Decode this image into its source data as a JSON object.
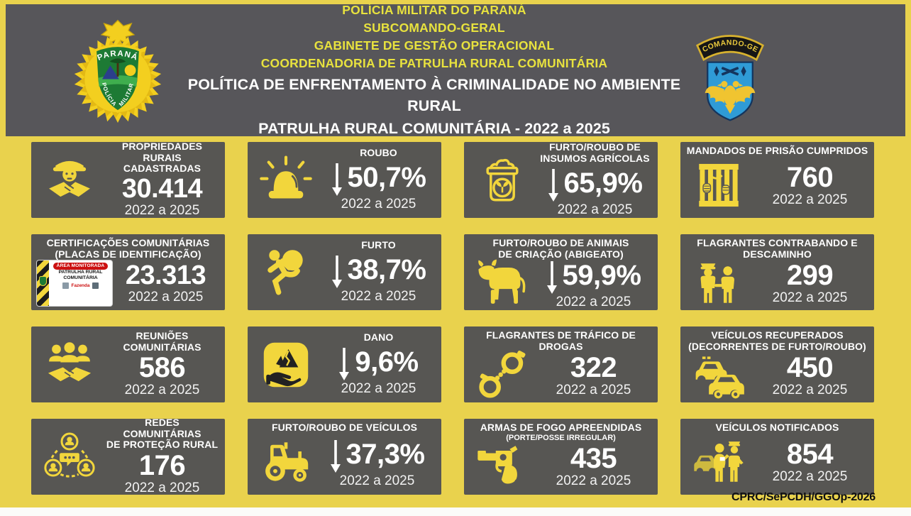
{
  "colors": {
    "background_yellow": "#e9d24d",
    "panel_gray": "#57565a",
    "card_gray": "#575653",
    "icon_yellow": "#f2d63c",
    "header_text_yellow": "#e8e23e",
    "white": "#ffffff"
  },
  "header": {
    "org_lines": [
      "POLÍCIA MILITAR DO PARANÁ",
      "SUBCOMANDO-GERAL",
      "GABINETE DE GESTÃO OPERACIONAL",
      "COORDENADORIA DE PATRULHA RURAL COMUNITÁRIA"
    ],
    "title_lines": [
      "POLÍTICA DE ENFRENTAMENTO À CRIMINALIDADE NO AMBIENTE RURAL",
      "PATRULHA RURAL COMUNITÁRIA - 2022 a 2025"
    ],
    "badge": {
      "top_label": "PARANÁ",
      "left_label": "POLÍCIA",
      "right_label": "MILITAR"
    },
    "patch": {
      "banner": "SUBCOMANDO-GERAL"
    }
  },
  "sign_plate": {
    "banner": "ÁREA MONITORADA",
    "line1": "PATRULHA RURAL",
    "line2": "COMUNITÁRIA",
    "farm": "Fazenda"
  },
  "cards": [
    {
      "id": "propriedades",
      "icon": "farmer-handshake-icon",
      "layout": "icon-left",
      "title": "PROPRIEDADES RURAIS\nCADASTRADAS",
      "value": "30.414",
      "trend": null,
      "period": "2022 a 2025"
    },
    {
      "id": "roubo",
      "icon": "siren-icon",
      "layout": "icon-left",
      "title": "ROUBO",
      "value": "50,7%",
      "trend": "down",
      "period": "2022 a 2025"
    },
    {
      "id": "insumos",
      "icon": "seed-bag-icon",
      "layout": "icon-left",
      "title": "FURTO/ROUBO DE\nINSUMOS AGRÍCOLAS",
      "value": "65,9%",
      "trend": "down",
      "period": "2022 a 2025"
    },
    {
      "id": "mandados",
      "icon": "prison-bars-icon",
      "layout": "title-top",
      "title": "MANDADOS DE PRISÃO CUMPRIDOS",
      "value": "760",
      "trend": null,
      "period": "2022 a 2025"
    },
    {
      "id": "certificacoes",
      "icon": "sign-plate-image",
      "layout": "title-top",
      "title": "CERTIFICAÇÕES COMUNITÁRIAS\n(PLACAS DE IDENTIFICAÇÃO)",
      "value": "23.313",
      "trend": null,
      "period": "2022 a 2025"
    },
    {
      "id": "furto",
      "icon": "running-thief-icon",
      "layout": "icon-left",
      "title": "FURTO",
      "value": "38,7%",
      "trend": "down",
      "period": "2022 a 2025"
    },
    {
      "id": "abigeato",
      "icon": "cattle-icon",
      "layout": "title-top",
      "title": "FURTO/ROUBO DE ANIMAIS\nDE CRIAÇÃO (ABIGEATO)",
      "value": "59,9%",
      "trend": "down",
      "period": "2022 a 2025"
    },
    {
      "id": "contrabando",
      "icon": "police-escort-icon",
      "layout": "title-top",
      "title": "FLAGRANTES CONTRABANDO E\nDESCAMINHO",
      "value": "299",
      "trend": null,
      "period": "2022 a 2025"
    },
    {
      "id": "reunioes",
      "icon": "community-handshake-icon",
      "layout": "icon-left",
      "title": "REUNIÕES COMUNITÁRIAS",
      "value": "586",
      "trend": null,
      "period": "2022 a 2025"
    },
    {
      "id": "dano",
      "icon": "damage-hand-icon",
      "layout": "icon-left",
      "title": "DANO",
      "value": "9,6%",
      "trend": "down",
      "period": "2022 a 2025"
    },
    {
      "id": "drogas",
      "icon": "handcuffs-icon",
      "layout": "title-top",
      "title": "FLAGRANTES DE TRÁFICO DE\nDROGAS",
      "value": "322",
      "trend": null,
      "period": "2022 a 2025"
    },
    {
      "id": "recuperados",
      "icon": "recovered-cars-icon",
      "layout": "title-top",
      "title": "VEÍCULOS RECUPERADOS\n(DECORRENTES DE FURTO/ROUBO)",
      "value": "450",
      "trend": null,
      "period": "2022 a 2025"
    },
    {
      "id": "redes",
      "icon": "community-network-icon",
      "layout": "icon-left",
      "title": "REDES COMUNITÁRIAS\nDE PROTEÇÃO RURAL",
      "value": "176",
      "trend": null,
      "period": "2022 a 2025"
    },
    {
      "id": "veiculos-furto",
      "icon": "tractor-icon",
      "layout": "title-top",
      "title": "FURTO/ROUBO DE VEÍCULOS",
      "value": "37,3%",
      "trend": "down",
      "period": "2022 a 2025"
    },
    {
      "id": "armas",
      "icon": "revolver-icon",
      "layout": "title-top",
      "title": "ARMAS DE FOGO APREENDIDAS",
      "subtitle": "(PORTE/POSSE IRREGULAR)",
      "value": "435",
      "trend": null,
      "period": "2022 a 2025"
    },
    {
      "id": "notificados",
      "icon": "traffic-stop-icon",
      "layout": "title-top",
      "title": "VEÍCULOS NOTIFICADOS",
      "value": "854",
      "trend": null,
      "period": "2022 a 2025"
    }
  ],
  "footer": {
    "credit": "CPRC/SePCDH/GGOp-2026"
  }
}
